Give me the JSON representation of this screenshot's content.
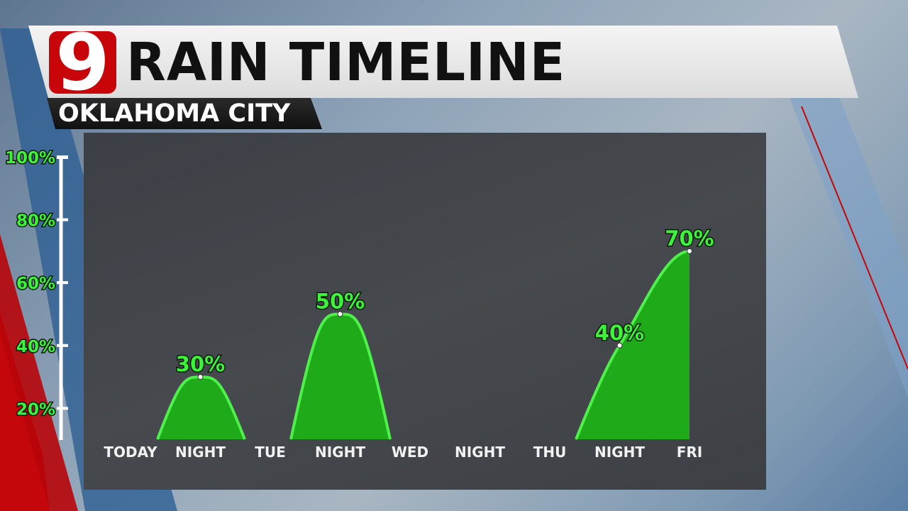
{
  "header": {
    "logo_text": "9",
    "title": "RAIN TIMELINE",
    "subtitle": "OKLAHOMA CITY"
  },
  "colors": {
    "fill": "#1faa1a",
    "line": "#4ef04a",
    "label": "#3cf23a",
    "logo": "#c8060a"
  },
  "chart_data": {
    "type": "area",
    "categories": [
      "TODAY",
      "NIGHT",
      "TUE",
      "NIGHT",
      "WED",
      "NIGHT",
      "THU",
      "NIGHT",
      "FRI"
    ],
    "values": [
      null,
      30,
      null,
      50,
      null,
      null,
      null,
      40,
      70
    ],
    "data_labels": [
      "",
      "30%",
      "",
      "50%",
      "",
      "",
      "",
      "40%",
      "70%"
    ],
    "y_ticks": [
      "20%",
      "40%",
      "60%",
      "80%",
      "100%"
    ],
    "y_tick_values": [
      20,
      40,
      60,
      80,
      100
    ],
    "ylim": [
      0,
      100
    ],
    "grid": false,
    "legend": "none"
  }
}
